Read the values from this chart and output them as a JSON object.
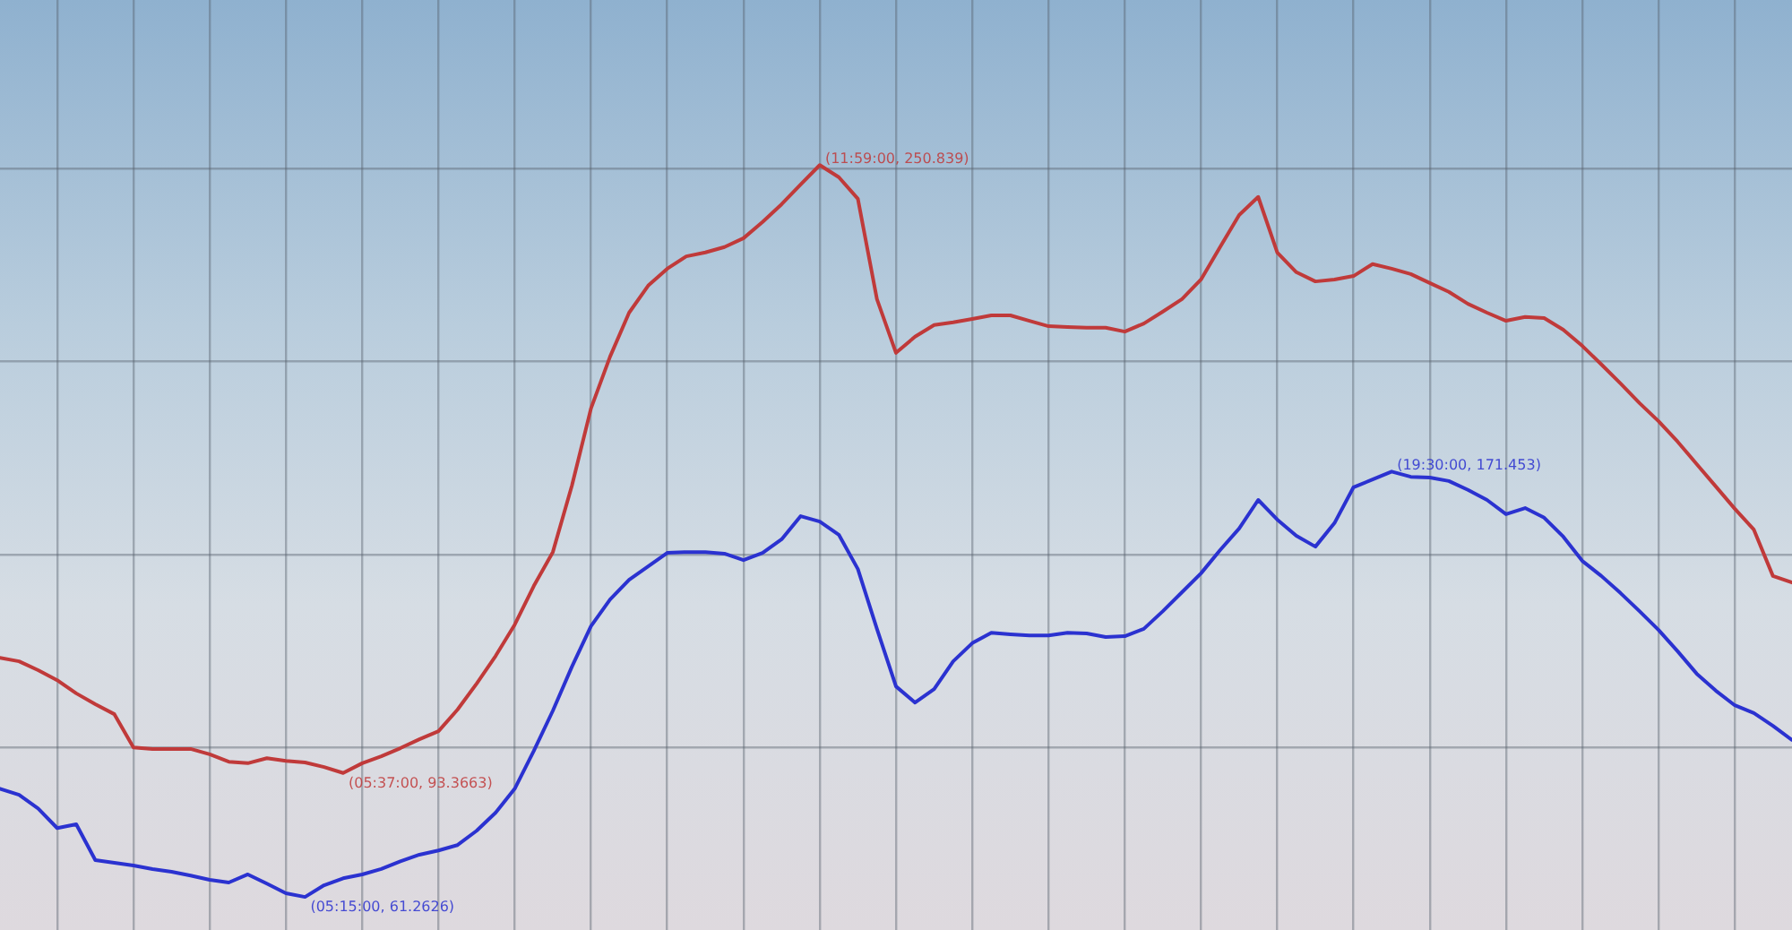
{
  "chart_data": {
    "type": "line",
    "ylim": [
      52.7,
      293.6
    ],
    "yticks": [
      {
        "value": 100,
        "label": null
      },
      {
        "value": 150,
        "label": null
      },
      {
        "value": 200,
        "label": null
      },
      {
        "value": 250,
        "label": null
      }
    ],
    "tick_labels": false,
    "grid": true,
    "marker": "none",
    "categories": [
      null,
      null,
      null,
      null,
      null,
      null,
      null,
      null,
      null,
      null,
      null,
      null,
      null,
      null,
      null,
      null,
      null,
      null,
      null,
      null,
      null,
      null,
      null,
      null,
      null,
      null,
      null,
      null,
      null,
      null,
      null,
      null,
      null,
      null,
      null,
      null,
      null,
      null,
      null,
      null,
      null,
      null,
      null,
      null,
      null,
      null,
      null,
      null,
      null,
      null,
      null,
      null,
      null,
      null,
      null,
      null,
      null,
      null,
      null,
      null,
      null,
      null,
      null,
      null,
      null,
      null,
      null,
      null,
      null,
      null,
      null,
      null,
      null,
      null,
      null,
      null,
      null,
      null,
      null,
      null,
      null,
      null,
      null,
      null,
      null,
      null,
      null,
      null,
      null,
      null,
      null,
      null,
      null,
      null,
      null
    ],
    "series": [
      {
        "color": "#c03a3a",
        "values": [
          123.2,
          122.3,
          120.0,
          117.4,
          114.0,
          111.2,
          108.6,
          100.0,
          99.6,
          99.6,
          99.6,
          98.2,
          96.3,
          95.9,
          97.2,
          96.5,
          96.1,
          94.9,
          93.3663,
          95.9,
          97.7,
          99.8,
          102.1,
          104.2,
          109.8,
          116.5,
          123.7,
          131.8,
          141.8,
          150.6,
          167.8,
          187.8,
          201.2,
          212.6,
          219.6,
          224.0,
          227.2,
          228.2,
          229.6,
          231.9,
          236.1,
          240.7,
          245.8,
          250.839,
          247.7,
          242.1,
          216.1,
          202.2,
          206.4,
          209.4,
          210.1,
          211.0,
          211.9,
          211.9,
          210.5,
          209.1,
          208.9,
          208.7,
          208.7,
          207.7,
          209.8,
          212.9,
          216.1,
          221.2,
          229.6,
          237.9,
          242.6,
          228.2,
          223.1,
          220.7,
          221.2,
          222.1,
          225.2,
          224.0,
          222.6,
          220.3,
          218.0,
          214.9,
          212.6,
          210.5,
          211.5,
          211.2,
          208.2,
          204.0,
          199.2,
          194.3,
          189.2,
          184.5,
          179.2,
          173.4,
          167.6,
          161.8,
          156.4,
          144.4,
          142.7
        ],
        "value_labels": [
          null,
          null,
          null,
          null,
          null,
          null,
          null,
          null,
          null,
          null,
          null,
          null,
          null,
          null,
          null,
          null,
          null,
          null,
          "(05:37:00, 93.3663)",
          null,
          null,
          null,
          null,
          null,
          null,
          null,
          null,
          null,
          null,
          null,
          null,
          null,
          null,
          null,
          null,
          null,
          null,
          null,
          null,
          null,
          null,
          null,
          null,
          "(11:59:00, 250.839)",
          null,
          null,
          null,
          null,
          null,
          null,
          null,
          null,
          null,
          null,
          null,
          null,
          null,
          null,
          null,
          null,
          null,
          null,
          null,
          null,
          null,
          null,
          null,
          null,
          null,
          null,
          null,
          null,
          null,
          null,
          null,
          null,
          null,
          null,
          null,
          null,
          null,
          null,
          null,
          null,
          null,
          null,
          null,
          null,
          null,
          null,
          null,
          null,
          null,
          null,
          null
        ]
      },
      {
        "color": "#2b32d0",
        "values": [
          89.3,
          87.7,
          84.2,
          79.1,
          80.1,
          70.8,
          70.1,
          69.4,
          68.5,
          67.8,
          66.8,
          65.7,
          65.0,
          67.1,
          64.7,
          62.2,
          61.2626,
          64.3,
          66.1,
          67.1,
          68.5,
          70.5,
          72.2,
          73.3,
          74.7,
          78.4,
          83.1,
          89.3,
          99.1,
          109.5,
          120.9,
          131.4,
          138.3,
          143.4,
          146.9,
          150.4,
          150.6,
          150.6,
          150.2,
          148.5,
          150.4,
          153.9,
          159.9,
          158.5,
          155.1,
          146.2,
          130.7,
          115.8,
          111.6,
          115.1,
          122.3,
          127.0,
          129.7,
          129.3,
          129.0,
          129.0,
          129.7,
          129.5,
          128.6,
          128.8,
          130.7,
          135.3,
          140.2,
          145.1,
          151.1,
          156.7,
          164.1,
          159.0,
          154.8,
          152.0,
          158.1,
          167.4,
          169.4,
          171.453,
          170.1,
          169.9,
          169.0,
          166.7,
          164.1,
          160.4,
          162.0,
          159.5,
          154.6,
          148.3,
          144.4,
          140.0,
          135.3,
          130.4,
          124.9,
          119.1,
          114.7,
          110.9,
          108.9,
          105.6,
          101.9
        ],
        "value_labels": [
          null,
          null,
          null,
          null,
          null,
          null,
          null,
          null,
          null,
          null,
          null,
          null,
          null,
          null,
          null,
          null,
          "(05:15:00, 61.2626)",
          null,
          null,
          null,
          null,
          null,
          null,
          null,
          null,
          null,
          null,
          null,
          null,
          null,
          null,
          null,
          null,
          null,
          null,
          null,
          null,
          null,
          null,
          null,
          null,
          null,
          null,
          null,
          null,
          null,
          null,
          null,
          null,
          null,
          null,
          null,
          null,
          null,
          null,
          null,
          null,
          null,
          null,
          null,
          null,
          null,
          null,
          null,
          null,
          null,
          null,
          null,
          null,
          null,
          null,
          null,
          null,
          "(19:30:00, 171.453)",
          null,
          null,
          null,
          null,
          null,
          null,
          null,
          null,
          null,
          null,
          null,
          null,
          null,
          null,
          null,
          null,
          null,
          null,
          null,
          null,
          null
        ]
      }
    ]
  }
}
